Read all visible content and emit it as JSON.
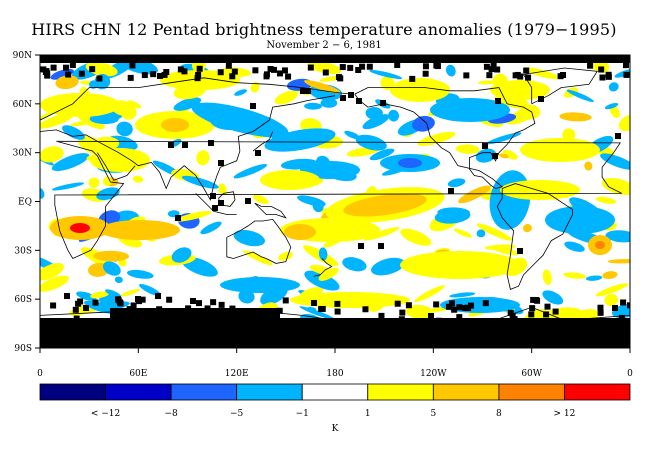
{
  "title": "HIRS CHN 12 Pentad brightness temperature anomalies (1979−1995)",
  "subtitle": "November 2 − 6, 1981",
  "map": {
    "lat_ticks": [
      {
        "lat": 90,
        "label": "90N"
      },
      {
        "lat": 60,
        "label": "60N"
      },
      {
        "lat": 30,
        "label": "30N"
      },
      {
        "lat": 0,
        "label": "EQ"
      },
      {
        "lat": -30,
        "label": "30S"
      },
      {
        "lat": -60,
        "label": "60S"
      },
      {
        "lat": -90,
        "label": "90S"
      }
    ],
    "lon_ticks": [
      {
        "lon": 0,
        "label": "0"
      },
      {
        "lon": 60,
        "label": "60E"
      },
      {
        "lon": 120,
        "label": "120E"
      },
      {
        "lon": 180,
        "label": "180"
      },
      {
        "lon": 240,
        "label": "120W"
      },
      {
        "lon": 300,
        "label": "60W"
      },
      {
        "lon": 360,
        "label": "0"
      }
    ],
    "missing_color": "#000000",
    "coast_color": "#000000"
  },
  "colorbar": {
    "colors": [
      "#000080",
      "#0000c8",
      "#1e64ff",
      "#00b4ff",
      "#ffffff",
      "#ffff00",
      "#ffc800",
      "#ff8200",
      "#ff0000"
    ],
    "labels": [
      {
        "at": 1,
        "text": "< −12"
      },
      {
        "at": 2,
        "text": "−8"
      },
      {
        "at": 3,
        "text": "−5"
      },
      {
        "at": 4,
        "text": "−1"
      },
      {
        "at": 5,
        "text": "1"
      },
      {
        "at": 6,
        "text": "5"
      },
      {
        "at": 7,
        "text": "8"
      },
      {
        "at": 8,
        "text": "> 12"
      }
    ],
    "unit": "K"
  }
}
